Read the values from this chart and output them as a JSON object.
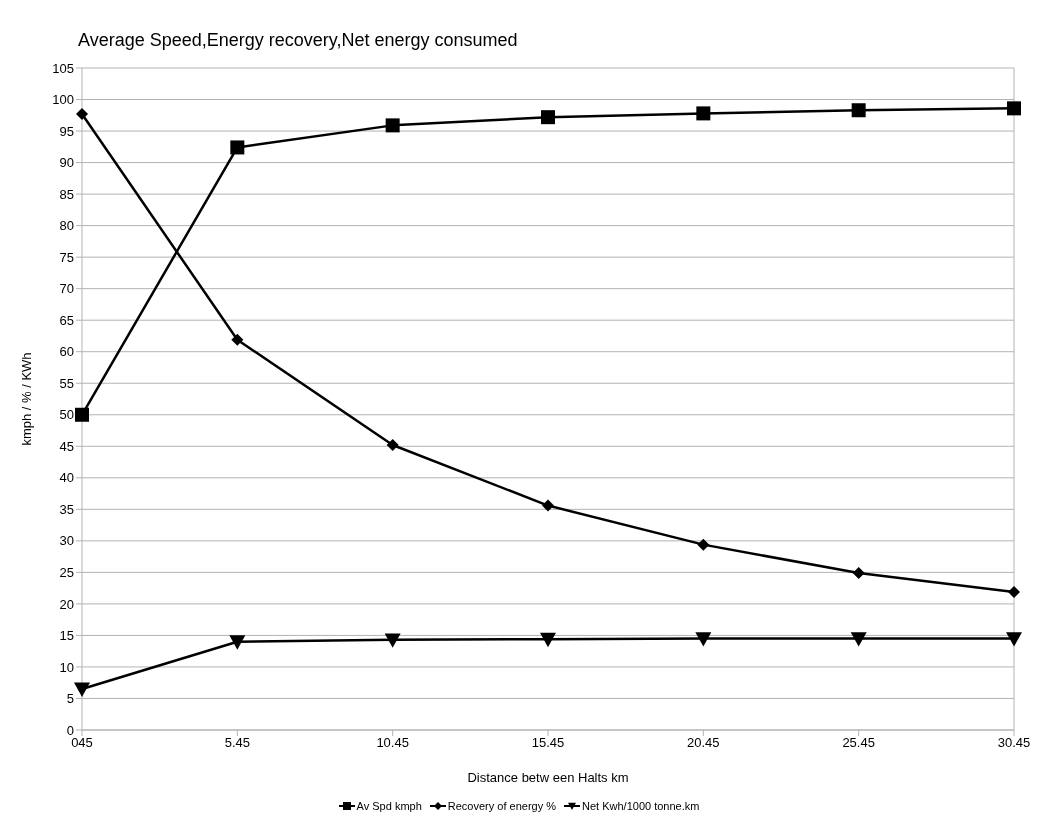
{
  "chart_data": {
    "type": "line",
    "title": "Average Speed,Energy recovery,Net energy consumed",
    "xlabel": "Distance betw een Halts km",
    "ylabel": "kmph / %  /  KWh",
    "categories": [
      "045",
      "5.45",
      "10.45",
      "15.45",
      "20.45",
      "25.45",
      "30.45"
    ],
    "series": [
      {
        "name": "Av Spd kmph",
        "color": "#000000",
        "marker": "square",
        "values": [
          50,
          92.4,
          95.9,
          97.2,
          97.8,
          98.3,
          98.6
        ]
      },
      {
        "name": "Recovery of energy %",
        "color": "#000000",
        "marker": "diamond",
        "values": [
          97.7,
          61.9,
          45.2,
          35.6,
          29.4,
          24.9,
          21.9
        ]
      },
      {
        "name": "Net Kwh/1000 tonne.km",
        "color": "#000000",
        "marker": "triangle",
        "values": [
          6.5,
          14,
          14.3,
          14.4,
          14.5,
          14.5,
          14.5
        ]
      }
    ],
    "ylim": [
      0,
      105
    ],
    "yticks": [
      0,
      5,
      10,
      15,
      20,
      25,
      30,
      35,
      40,
      45,
      50,
      55,
      60,
      65,
      70,
      75,
      80,
      85,
      90,
      95,
      100,
      105
    ],
    "grid": "y",
    "legend": "bottom",
    "line_style": "solid"
  }
}
